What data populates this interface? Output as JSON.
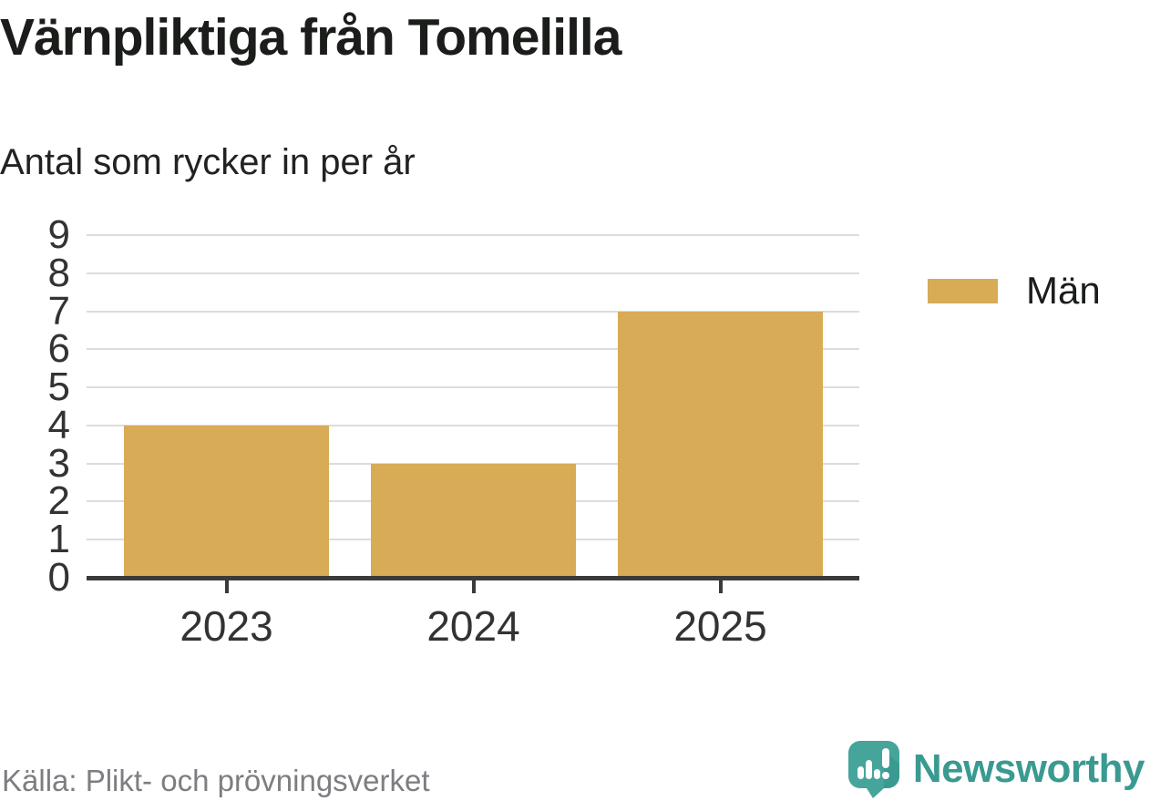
{
  "header": {
    "title": "Värnpliktiga från Tomelilla",
    "subtitle": "Antal som rycker in per år"
  },
  "chart_data": {
    "type": "bar",
    "categories": [
      "2023",
      "2024",
      "2025"
    ],
    "series": [
      {
        "name": "Män",
        "values": [
          4,
          3,
          7
        ]
      }
    ],
    "title": "Värnpliktiga från Tomelilla",
    "subtitle": "Antal som rycker in per år",
    "xlabel": "",
    "ylabel": "",
    "ylim": [
      0,
      9
    ],
    "yticks": [
      0,
      1,
      2,
      3,
      4,
      5,
      6,
      7,
      8,
      9
    ],
    "grid": true,
    "legend_position": "right",
    "bar_color": "#d8ab57"
  },
  "legend": {
    "items": [
      {
        "label": "Män",
        "color": "#d8ab57"
      }
    ]
  },
  "footer": {
    "source": "Källa: Plikt- och prövningsverket",
    "brand": "Newsworthy"
  },
  "colors": {
    "bar": "#d8ab57",
    "axis": "#3a3a3a",
    "grid": "#dcdcdc",
    "text": "#1a1d1a",
    "tick_label": "#333333",
    "source_text": "#7d7d82",
    "brand_teal": "#3a9a92",
    "brand_icon": "#45a59b",
    "brand_icon_shade": "#2f9188"
  }
}
